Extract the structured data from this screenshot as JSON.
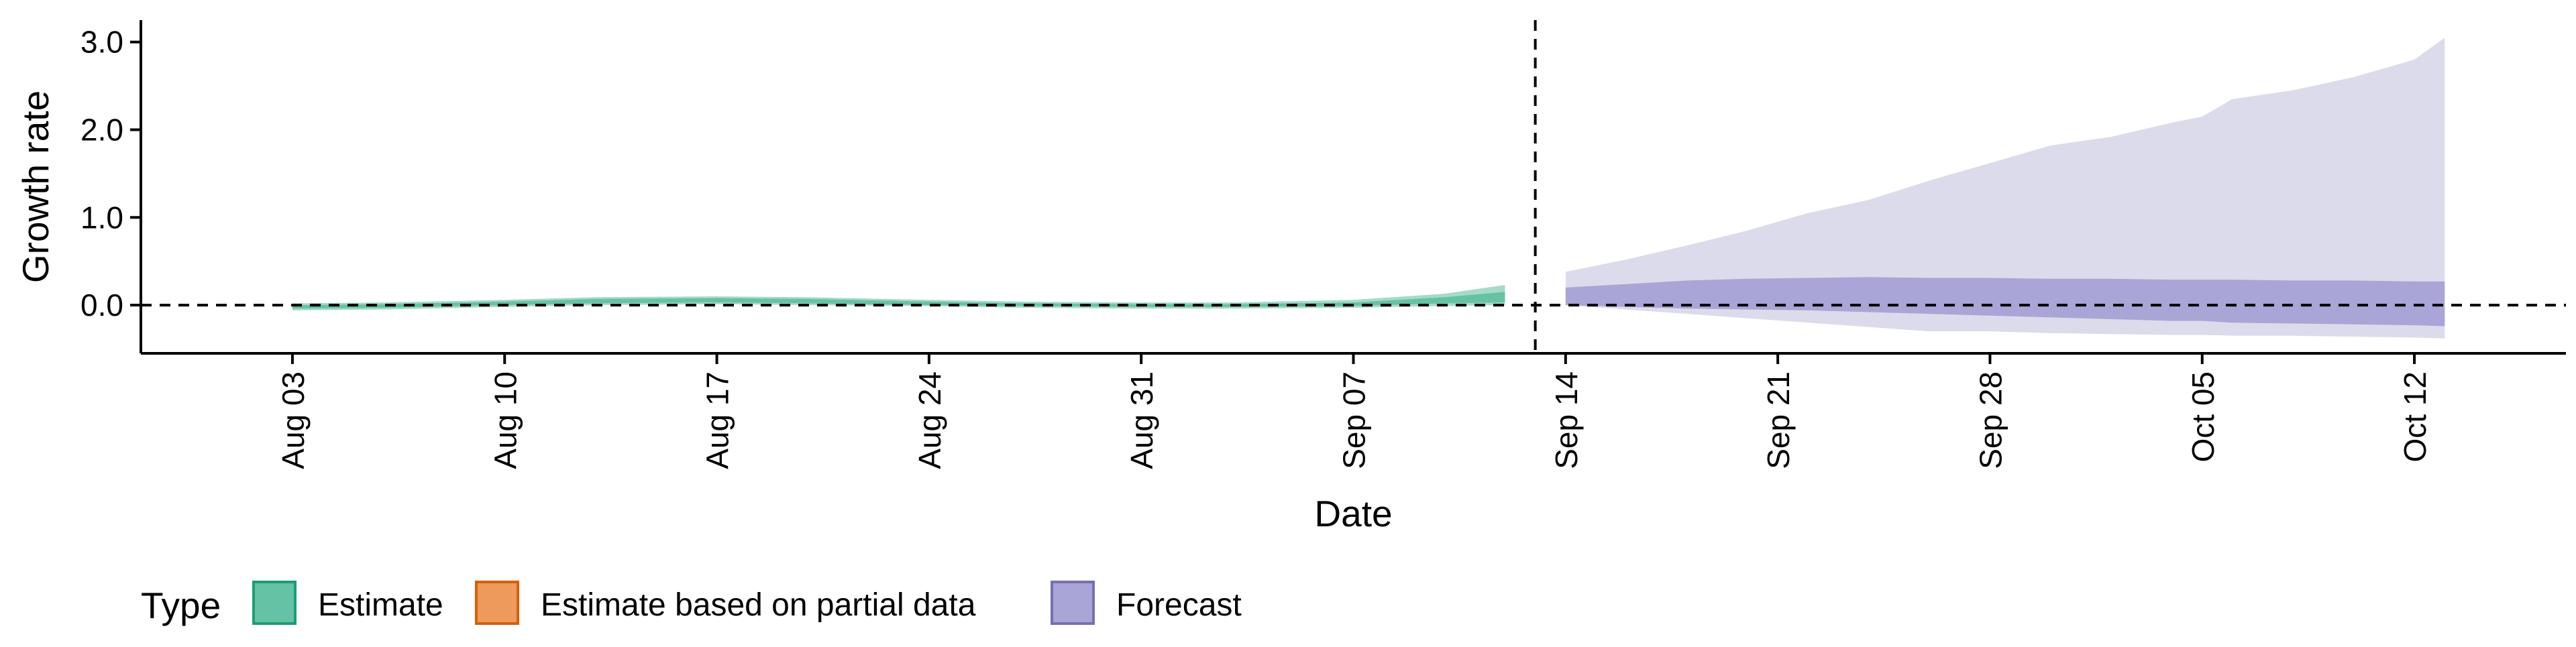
{
  "chart_data": {
    "type": "area",
    "xlabel": "Date",
    "ylabel": "Growth rate",
    "x_ticks": [
      "Aug 03",
      "Aug 10",
      "Aug 17",
      "Aug 24",
      "Aug 31",
      "Sep 07",
      "Sep 14",
      "Sep 21",
      "Sep 28",
      "Oct 05",
      "Oct 12"
    ],
    "x_range": [
      "2020-07-29",
      "2020-10-17"
    ],
    "y_ticks": [
      "0.0",
      "1.0",
      "2.0",
      "3.0"
    ],
    "ylim": [
      -0.55,
      3.25
    ],
    "reference_lines": [
      {
        "axis": "y",
        "value": 0,
        "style": "dashed"
      },
      {
        "axis": "x",
        "value": "2020-09-13",
        "style": "dashed"
      }
    ],
    "grid": false,
    "legend": {
      "title": "Type",
      "position": "bottom-left",
      "entries": [
        {
          "label": "Estimate",
          "fill": "#66C2A5",
          "stroke": "#1B9E77"
        },
        {
          "label": "Estimate based on partial data",
          "fill": "#EE9A5C",
          "stroke": "#D95F02"
        },
        {
          "label": "Forecast",
          "fill": "#A9A5D6",
          "stroke": "#7570B3"
        }
      ]
    },
    "colors": {
      "estimate_outer": "#A6DBC8",
      "estimate_inner": "#66C2A5",
      "forecast_outer": "#DCDBEB",
      "forecast_inner": "#A9A5D6"
    },
    "series": [
      {
        "type": "Estimate",
        "dates": [
          "2020-08-03",
          "2020-08-06",
          "2020-08-10",
          "2020-08-13",
          "2020-08-17",
          "2020-08-20",
          "2020-08-24",
          "2020-08-27",
          "2020-08-31",
          "2020-09-03",
          "2020-09-07",
          "2020-09-10",
          "2020-09-12"
        ],
        "outer_lower": [
          -0.06,
          -0.05,
          -0.02,
          0.0,
          0.01,
          0.0,
          -0.01,
          -0.03,
          -0.04,
          -0.04,
          -0.03,
          -0.01,
          0.0
        ],
        "outer_upper": [
          0.02,
          0.03,
          0.06,
          0.09,
          0.1,
          0.09,
          0.06,
          0.04,
          0.03,
          0.03,
          0.06,
          0.13,
          0.23
        ],
        "inner_lower": [
          -0.04,
          -0.03,
          0.0,
          0.02,
          0.03,
          0.02,
          0.0,
          -0.01,
          -0.02,
          -0.02,
          -0.01,
          0.02,
          0.03
        ],
        "inner_upper": [
          0.0,
          0.01,
          0.04,
          0.07,
          0.08,
          0.07,
          0.04,
          0.02,
          0.01,
          0.01,
          0.03,
          0.09,
          0.15
        ]
      },
      {
        "type": "Forecast",
        "dates": [
          "2020-09-14",
          "2020-09-16",
          "2020-09-18",
          "2020-09-20",
          "2020-09-22",
          "2020-09-24",
          "2020-09-26",
          "2020-09-28",
          "2020-09-30",
          "2020-10-02",
          "2020-10-04",
          "2020-10-05",
          "2020-10-06",
          "2020-10-08",
          "2020-10-10",
          "2020-10-12",
          "2020-10-13"
        ],
        "outer_lower": [
          0.0,
          -0.05,
          -0.1,
          -0.15,
          -0.2,
          -0.25,
          -0.3,
          -0.3,
          -0.32,
          -0.33,
          -0.34,
          -0.34,
          -0.35,
          -0.35,
          -0.36,
          -0.37,
          -0.38
        ],
        "outer_upper": [
          0.38,
          0.52,
          0.68,
          0.85,
          1.05,
          1.2,
          1.42,
          1.62,
          1.82,
          1.92,
          2.08,
          2.15,
          2.35,
          2.45,
          2.6,
          2.8,
          3.05
        ],
        "inner_lower": [
          0.0,
          -0.02,
          -0.04,
          -0.05,
          -0.06,
          -0.08,
          -0.1,
          -0.12,
          -0.14,
          -0.16,
          -0.18,
          -0.18,
          -0.2,
          -0.21,
          -0.22,
          -0.23,
          -0.24
        ],
        "inner_upper": [
          0.2,
          0.24,
          0.28,
          0.3,
          0.31,
          0.32,
          0.31,
          0.31,
          0.3,
          0.3,
          0.29,
          0.29,
          0.29,
          0.28,
          0.28,
          0.27,
          0.27
        ]
      }
    ]
  }
}
